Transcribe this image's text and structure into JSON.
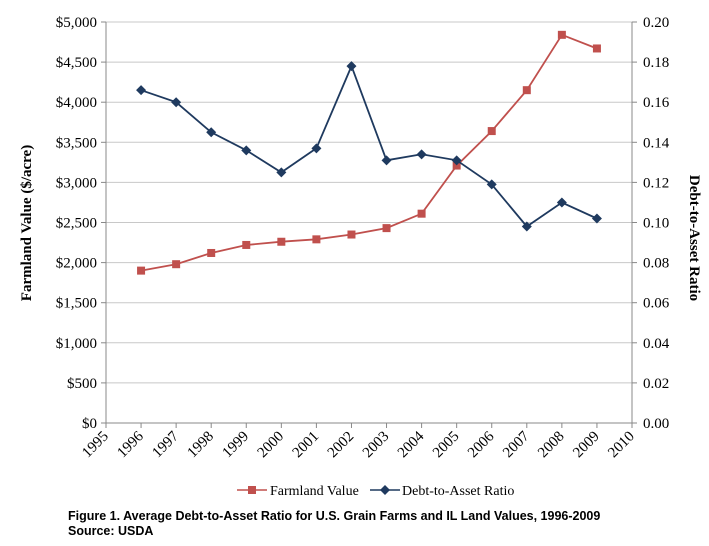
{
  "chart_data": {
    "type": "line",
    "title": "",
    "categories": [
      "1995",
      "1996",
      "1997",
      "1998",
      "1999",
      "2000",
      "2001",
      "2002",
      "2003",
      "2004",
      "2005",
      "2006",
      "2007",
      "2008",
      "2009",
      "2010"
    ],
    "y_left": {
      "label": "Farmland Value ($/acre)",
      "range": [
        0,
        5000
      ],
      "ticks": [
        0,
        500,
        1000,
        1500,
        2000,
        2500,
        3000,
        3500,
        4000,
        4500,
        5000
      ],
      "tick_labels": [
        "$0",
        "$500",
        "$1,000",
        "$1,500",
        "$2,000",
        "$2,500",
        "$3,000",
        "$3,500",
        "$4,000",
        "$4,500",
        "$5,000"
      ]
    },
    "y_right": {
      "label": "Debt-to-Asset Ratio",
      "range": [
        0,
        0.2
      ],
      "ticks": [
        0,
        0.02,
        0.04,
        0.06,
        0.08,
        0.1,
        0.12,
        0.14,
        0.16,
        0.18,
        0.2
      ],
      "tick_labels": [
        "0.00",
        "0.02",
        "0.04",
        "0.06",
        "0.08",
        "0.10",
        "0.12",
        "0.14",
        "0.16",
        "0.18",
        "0.20"
      ]
    },
    "grid": "horizontal",
    "legend_position": "bottom",
    "series": [
      {
        "name": "Farmland Value",
        "axis": "left",
        "color": "#c0504d",
        "marker": "square",
        "x": [
          1996,
          1997,
          1998,
          1999,
          2000,
          2001,
          2002,
          2003,
          2004,
          2005,
          2006,
          2007,
          2008,
          2009
        ],
        "values": [
          1900,
          1980,
          2120,
          2220,
          2260,
          2290,
          2350,
          2430,
          2610,
          3210,
          3640,
          4150,
          4840,
          4670
        ]
      },
      {
        "name": "Debt-to-Asset Ratio",
        "axis": "right",
        "color": "#1f3a5f",
        "marker": "diamond",
        "x": [
          1996,
          1997,
          1998,
          1999,
          2000,
          2001,
          2002,
          2003,
          2004,
          2005,
          2006,
          2007,
          2008,
          2009
        ],
        "values": [
          0.166,
          0.16,
          0.145,
          0.136,
          0.125,
          0.137,
          0.178,
          0.131,
          0.134,
          0.131,
          0.119,
          0.098,
          0.11,
          0.102
        ]
      }
    ]
  },
  "caption": {
    "line1": "Figure 1. Average Debt-to-Asset Ratio for U.S. Grain Farms and IL Land Values, 1996-2009",
    "line2": "Source: USDA"
  }
}
